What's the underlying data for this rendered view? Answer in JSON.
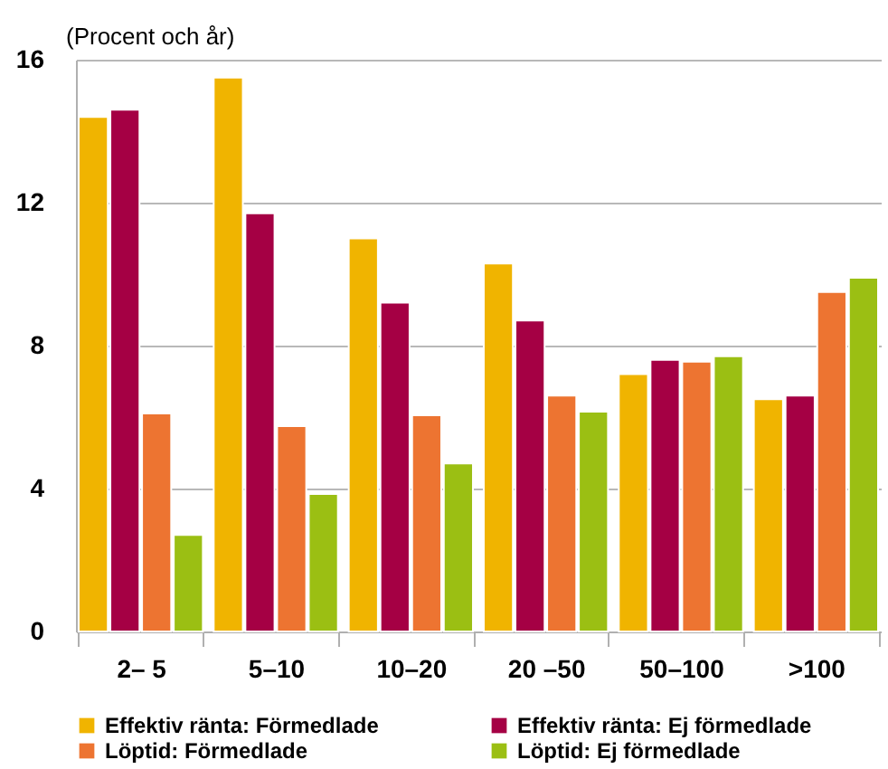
{
  "chart_data": {
    "type": "bar",
    "ylabel": "(Procent och år)",
    "categories": [
      "2– 5",
      "5–10",
      "10–20",
      "20 –50",
      "50–100",
      ">100"
    ],
    "series": [
      {
        "name": "Effektiv ränta: Förmedlade",
        "color": "#f0b400",
        "values": [
          14.4,
          15.5,
          11.0,
          10.3,
          7.2,
          6.5
        ]
      },
      {
        "name": "Effektiv ränta: Ej förmedlade",
        "color": "#a50044",
        "values": [
          14.6,
          11.7,
          9.2,
          8.7,
          7.6,
          6.6
        ]
      },
      {
        "name": "Löptid: Förmedlade",
        "color": "#ed7431",
        "values": [
          6.1,
          5.75,
          6.05,
          6.6,
          7.55,
          9.5
        ]
      },
      {
        "name": "Löptid: Ej förmedlade",
        "color": "#9bbf13",
        "values": [
          2.7,
          3.85,
          4.7,
          6.15,
          7.7,
          9.9
        ]
      }
    ],
    "ylim": [
      0,
      16
    ],
    "yticks": [
      0,
      4,
      8,
      12,
      16
    ],
    "grid": "y",
    "legend": "bottom"
  }
}
